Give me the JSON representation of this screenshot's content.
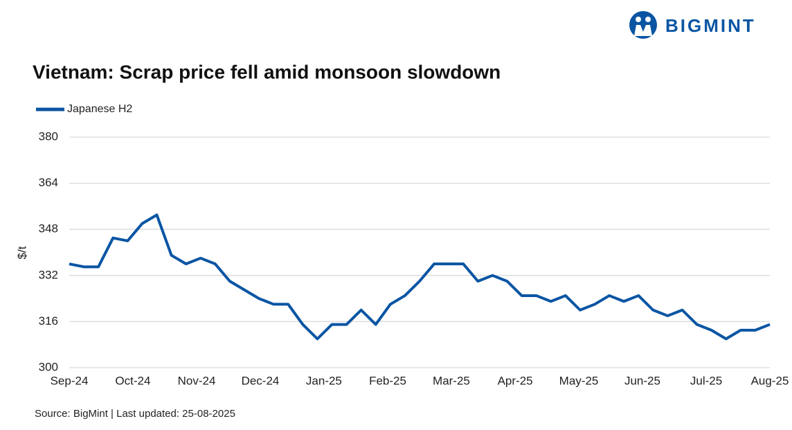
{
  "logo": "BIGMINT",
  "chart_data": {
    "type": "line",
    "title": "Vietnam: Scrap price fell amid monsoon slowdown",
    "y_label": "$/t",
    "source": "Source: BigMint | Last updated: 25-08-2025",
    "x": [
      0,
      1,
      2,
      3,
      4,
      5,
      6,
      7,
      8,
      9,
      10,
      11,
      12,
      13,
      14,
      15,
      16,
      17,
      18,
      19,
      20,
      21,
      22,
      23,
      24,
      25,
      26,
      27,
      28,
      29,
      30,
      31,
      32,
      33,
      34,
      35,
      36,
      37,
      38,
      39,
      40,
      41,
      42,
      43,
      44,
      45,
      46,
      47,
      48
    ],
    "series": [
      {
        "name": "Japanese H2",
        "color": "#0a55a3",
        "values": [
          336,
          335,
          335,
          345,
          344,
          350,
          353,
          339,
          336,
          338,
          336,
          330,
          327,
          324,
          322,
          322,
          315,
          310,
          315,
          315,
          320,
          315,
          322,
          325,
          330,
          336,
          336,
          336,
          330,
          332,
          330,
          325,
          325,
          323,
          325,
          320,
          322,
          325,
          323,
          325,
          320,
          318,
          320,
          315,
          313,
          310,
          313,
          313,
          315
        ]
      }
    ],
    "xlim": [
      0,
      48
    ],
    "xticks": [
      {
        "value": 0,
        "label": "Sep-24"
      },
      {
        "value": 4.36,
        "label": "Oct-24"
      },
      {
        "value": 8.73,
        "label": "Nov-24"
      },
      {
        "value": 13.09,
        "label": "Dec-24"
      },
      {
        "value": 17.45,
        "label": "Jan-25"
      },
      {
        "value": 21.82,
        "label": "Feb-25"
      },
      {
        "value": 26.18,
        "label": "Mar-25"
      },
      {
        "value": 30.55,
        "label": "Apr-25"
      },
      {
        "value": 34.91,
        "label": "May-25"
      },
      {
        "value": 39.27,
        "label": "Jun-25"
      },
      {
        "value": 43.64,
        "label": "Jul-25"
      },
      {
        "value": 48,
        "label": "Aug-25"
      }
    ],
    "ylim": [
      300,
      380
    ],
    "yticks": [
      300,
      316,
      332,
      348,
      364,
      380
    ],
    "grid": true,
    "legend": "top-left"
  }
}
